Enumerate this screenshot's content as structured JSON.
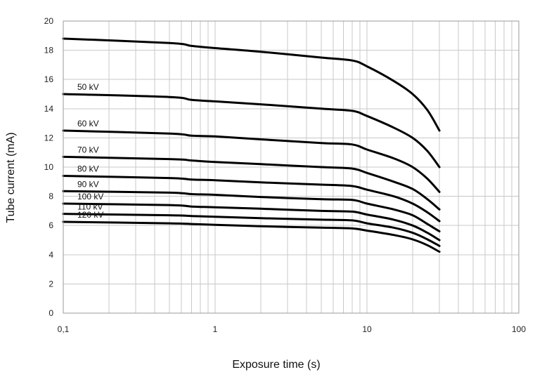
{
  "chart_data": {
    "type": "line",
    "title": "",
    "xlabel": "Exposure time (s)",
    "ylabel": "Tube current (mA)",
    "xscale": "log",
    "xlim": [
      0.1,
      100
    ],
    "ylim": [
      0,
      20
    ],
    "x_ticks": [
      0.1,
      1,
      10,
      100
    ],
    "x_tick_labels": [
      "0,1",
      "1",
      "10",
      "100"
    ],
    "y_ticks": [
      0,
      2,
      4,
      6,
      8,
      10,
      12,
      14,
      16,
      18,
      20
    ],
    "y_tick_labels": [
      "0",
      "2",
      "4",
      "6",
      "8",
      "10",
      "12",
      "14",
      "16",
      "18",
      "20"
    ],
    "grid": true,
    "x": [
      0.1,
      0.5,
      0.7,
      1,
      2,
      5,
      8,
      10,
      15,
      20,
      25,
      30
    ],
    "series": [
      {
        "name": "",
        "values": [
          18.8,
          18.5,
          18.3,
          18.15,
          17.9,
          17.5,
          17.3,
          16.9,
          15.9,
          15.0,
          13.9,
          12.5
        ]
      },
      {
        "name": "50 kV",
        "values": [
          15.0,
          14.8,
          14.6,
          14.5,
          14.3,
          14.0,
          13.85,
          13.5,
          12.7,
          12.0,
          11.1,
          10.0
        ]
      },
      {
        "name": "60 kV",
        "values": [
          12.5,
          12.3,
          12.15,
          12.1,
          11.9,
          11.65,
          11.55,
          11.2,
          10.6,
          10.0,
          9.2,
          8.3
        ]
      },
      {
        "name": "70 kV",
        "values": [
          10.7,
          10.55,
          10.45,
          10.35,
          10.2,
          10.0,
          9.9,
          9.6,
          9.0,
          8.5,
          7.8,
          7.1
        ]
      },
      {
        "name": "80 kV",
        "values": [
          9.4,
          9.25,
          9.15,
          9.1,
          8.95,
          8.8,
          8.7,
          8.45,
          8.0,
          7.5,
          6.9,
          6.3
        ]
      },
      {
        "name": "90 kV",
        "values": [
          8.35,
          8.25,
          8.15,
          8.1,
          7.95,
          7.8,
          7.75,
          7.5,
          7.1,
          6.7,
          6.1,
          5.6
        ]
      },
      {
        "name": "100 kV",
        "values": [
          7.5,
          7.4,
          7.3,
          7.25,
          7.15,
          7.0,
          6.95,
          6.75,
          6.4,
          6.0,
          5.5,
          5.0
        ]
      },
      {
        "name": "110 kV",
        "values": [
          6.8,
          6.7,
          6.65,
          6.6,
          6.5,
          6.4,
          6.35,
          6.15,
          5.85,
          5.5,
          5.05,
          4.6
        ]
      },
      {
        "name": "120 kV",
        "values": [
          6.25,
          6.15,
          6.1,
          6.05,
          5.95,
          5.85,
          5.8,
          5.65,
          5.35,
          5.05,
          4.65,
          4.2
        ]
      }
    ]
  }
}
